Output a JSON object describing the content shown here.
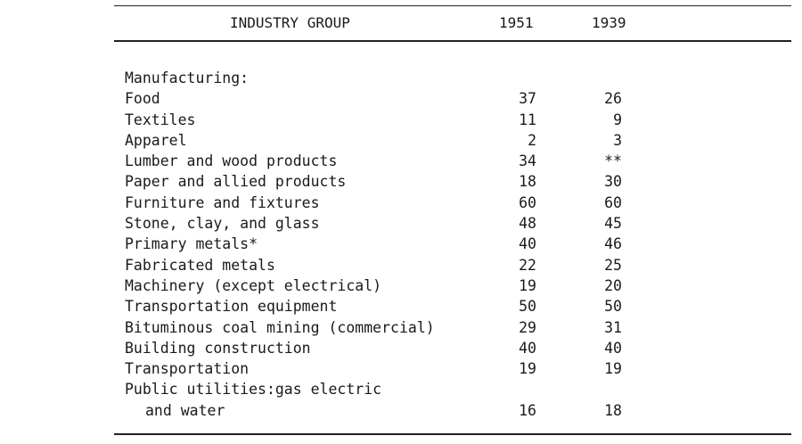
{
  "header": {
    "group_label": "INDUSTRY GROUP",
    "year_1": "1951",
    "year_2": "1939"
  },
  "section_label": "Manufacturing:",
  "rows": [
    {
      "label": "Food",
      "v1951": "37",
      "v1939": "26"
    },
    {
      "label": "Textiles",
      "v1951": "11",
      "v1939": "9"
    },
    {
      "label": "Apparel",
      "v1951": "2",
      "v1939": "3"
    },
    {
      "label": "Lumber and wood products",
      "v1951": "34",
      "v1939": "**"
    },
    {
      "label": "Paper and allied products",
      "v1951": "18",
      "v1939": "30"
    },
    {
      "label": "Furniture and fixtures",
      "v1951": "60",
      "v1939": "60"
    },
    {
      "label": "Stone, clay, and glass",
      "v1951": "48",
      "v1939": "45"
    },
    {
      "label": "Primary metals*",
      "v1951": "40",
      "v1939": "46"
    },
    {
      "label": "Fabricated metals",
      "v1951": "22",
      "v1939": "25"
    },
    {
      "label": "Machinery (except electrical)",
      "v1951": "19",
      "v1939": "20"
    },
    {
      "label": "Transportation equipment",
      "v1951": "50",
      "v1939": "50"
    },
    {
      "label": "Bituminous coal mining (commercial)",
      "v1951": "29",
      "v1939": "31"
    },
    {
      "label": "Building construction",
      "v1951": "40",
      "v1939": "40"
    },
    {
      "label": "Transportation",
      "v1951": "19",
      "v1939": "19"
    }
  ],
  "last_row": {
    "label_line1": "Public utilities:gas electric",
    "label_line2": "and water",
    "v1951": "16",
    "v1939": "18"
  }
}
